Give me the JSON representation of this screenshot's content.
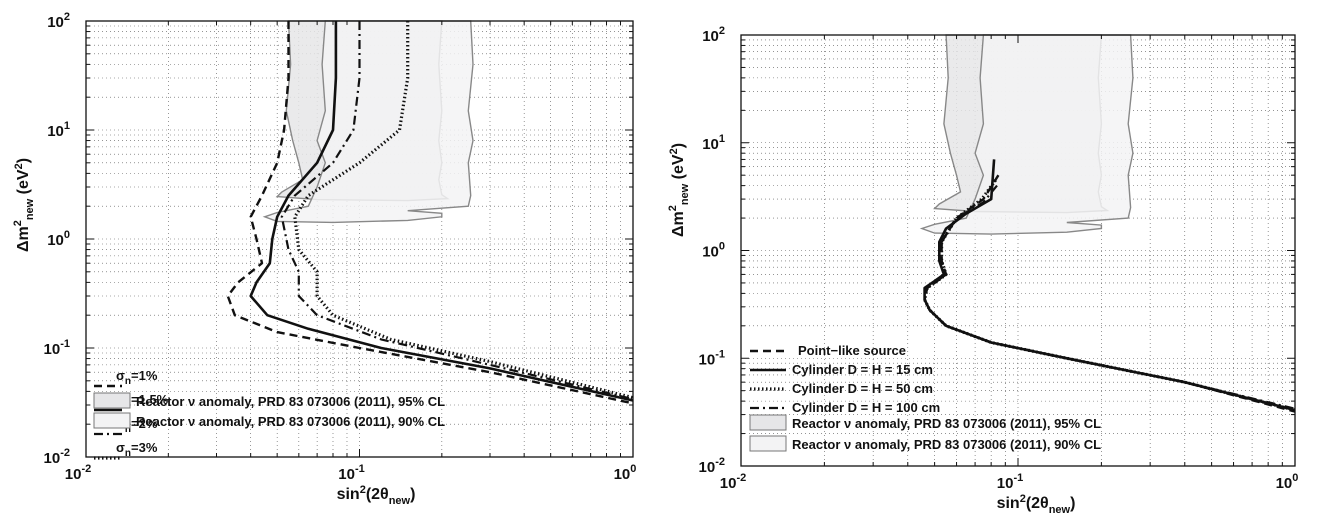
{
  "chart_data": [
    {
      "type": "line",
      "x_scale": "log",
      "y_scale": "log",
      "xlim": [
        0.01,
        1
      ],
      "ylim": [
        0.01,
        100
      ],
      "x_tick_labels": [
        "10-2",
        "10-1",
        "100"
      ],
      "y_tick_labels": [
        "10-2",
        "10-1",
        "100",
        "101",
        "102"
      ],
      "xlabel": "sin2(2θnew)",
      "ylabel": "Δm2new (eV2)",
      "grid": true,
      "legend_position": "lower-left",
      "series": [
        {
          "name": "σn=1%",
          "style": "dashed",
          "points": [
            [
              0.055,
              100
            ],
            [
              0.055,
              30
            ],
            [
              0.053,
              10
            ],
            [
              0.05,
              5
            ],
            [
              0.044,
              2.5
            ],
            [
              0.04,
              1.6
            ],
            [
              0.042,
              1.0
            ],
            [
              0.044,
              0.6
            ],
            [
              0.036,
              0.4
            ],
            [
              0.033,
              0.3
            ],
            [
              0.035,
              0.2
            ],
            [
              0.05,
              0.14
            ],
            [
              0.1,
              0.1
            ],
            [
              0.3,
              0.06
            ],
            [
              1,
              0.031
            ]
          ]
        },
        {
          "name": "σn=1.5%",
          "style": "solid",
          "points": [
            [
              0.082,
              100
            ],
            [
              0.082,
              30
            ],
            [
              0.08,
              10
            ],
            [
              0.07,
              5
            ],
            [
              0.055,
              2.5
            ],
            [
              0.05,
              1.6
            ],
            [
              0.048,
              1.0
            ],
            [
              0.047,
              0.6
            ],
            [
              0.042,
              0.4
            ],
            [
              0.04,
              0.3
            ],
            [
              0.046,
              0.2
            ],
            [
              0.065,
              0.15
            ],
            [
              0.12,
              0.1
            ],
            [
              0.3,
              0.065
            ],
            [
              1,
              0.033
            ]
          ]
        },
        {
          "name": "σn=2%",
          "style": "dashdot",
          "points": [
            [
              0.1,
              100
            ],
            [
              0.1,
              30
            ],
            [
              0.095,
              10
            ],
            [
              0.08,
              5
            ],
            [
              0.058,
              2.5
            ],
            [
              0.052,
              1.6
            ],
            [
              0.055,
              0.8
            ],
            [
              0.06,
              0.5
            ],
            [
              0.06,
              0.3
            ],
            [
              0.07,
              0.2
            ],
            [
              0.12,
              0.12
            ],
            [
              0.3,
              0.07
            ],
            [
              1,
              0.034
            ]
          ]
        },
        {
          "name": "σn=3%",
          "style": "dotted",
          "points": [
            [
              0.15,
              100
            ],
            [
              0.15,
              30
            ],
            [
              0.14,
              10
            ],
            [
              0.1,
              5
            ],
            [
              0.065,
              2.5
            ],
            [
              0.058,
              1.6
            ],
            [
              0.06,
              0.8
            ],
            [
              0.07,
              0.5
            ],
            [
              0.07,
              0.3
            ],
            [
              0.08,
              0.2
            ],
            [
              0.13,
              0.12
            ],
            [
              0.3,
              0.075
            ],
            [
              1,
              0.035
            ]
          ]
        }
      ],
      "regions": [
        {
          "name": "Reactor ν anomaly, PRD 83 073006 (2011), 95% CL",
          "fill": "#e6e6e8"
        },
        {
          "name": "Reactor ν anomaly, PRD 83 073006 (2011), 90% CL",
          "fill": "#f3f3f4"
        }
      ]
    },
    {
      "type": "line",
      "x_scale": "log",
      "y_scale": "log",
      "xlim": [
        0.01,
        1
      ],
      "ylim": [
        0.01,
        100
      ],
      "x_tick_labels": [
        "10-2",
        "10-1",
        "100"
      ],
      "y_tick_labels": [
        "10-2",
        "10-1",
        "100",
        "101",
        "102"
      ],
      "xlabel": "sin2(2θnew)",
      "ylabel": "Δm2new (eV2)",
      "grid": true,
      "legend_position": "lower-left",
      "series": [
        {
          "name": "Point−like source",
          "style": "dashed",
          "points": [
            [
              0.085,
              5
            ],
            [
              0.075,
              3
            ],
            [
              0.06,
              2
            ],
            [
              0.053,
              1.2
            ],
            [
              0.053,
              0.8
            ],
            [
              0.055,
              0.6
            ],
            [
              0.05,
              0.5
            ],
            [
              0.047,
              0.45
            ],
            [
              0.046,
              0.35
            ],
            [
              0.048,
              0.28
            ],
            [
              0.055,
              0.2
            ],
            [
              0.08,
              0.14
            ],
            [
              0.15,
              0.1
            ],
            [
              0.4,
              0.06
            ],
            [
              1,
              0.032
            ]
          ]
        },
        {
          "name": "Cylinder D = H = 15 cm",
          "style": "solid",
          "points": [
            [
              0.082,
              7
            ],
            [
              0.08,
              3
            ],
            [
              0.065,
              2.2
            ],
            [
              0.055,
              1.6
            ],
            [
              0.052,
              1.2
            ],
            [
              0.052,
              0.8
            ],
            [
              0.054,
              0.6
            ],
            [
              0.05,
              0.52
            ],
            [
              0.046,
              0.45
            ],
            [
              0.046,
              0.35
            ],
            [
              0.048,
              0.28
            ],
            [
              0.055,
              0.2
            ],
            [
              0.08,
              0.14
            ],
            [
              0.15,
              0.1
            ],
            [
              0.4,
              0.06
            ],
            [
              1,
              0.033
            ]
          ]
        },
        {
          "name": "Cylinder D = H = 50 cm",
          "style": "dotted",
          "points": [
            [
              0.083,
              4.5
            ],
            [
              0.074,
              3
            ],
            [
              0.06,
              2
            ],
            [
              0.053,
              1.2
            ],
            [
              0.053,
              0.8
            ],
            [
              0.055,
              0.6
            ],
            [
              0.05,
              0.5
            ],
            [
              0.047,
              0.45
            ],
            [
              0.046,
              0.35
            ],
            [
              0.048,
              0.28
            ],
            [
              0.055,
              0.2
            ],
            [
              0.08,
              0.14
            ],
            [
              0.15,
              0.1
            ],
            [
              0.4,
              0.06
            ],
            [
              1,
              0.033
            ]
          ]
        },
        {
          "name": "Cylinder D = H = 100 cm",
          "style": "dashdot",
          "points": [
            [
              0.084,
              4
            ],
            [
              0.075,
              2.8
            ],
            [
              0.06,
              2
            ],
            [
              0.053,
              1.2
            ],
            [
              0.053,
              0.8
            ],
            [
              0.055,
              0.6
            ],
            [
              0.05,
              0.5
            ],
            [
              0.047,
              0.45
            ],
            [
              0.046,
              0.35
            ],
            [
              0.048,
              0.28
            ],
            [
              0.055,
              0.2
            ],
            [
              0.08,
              0.14
            ],
            [
              0.15,
              0.1
            ],
            [
              0.4,
              0.06
            ],
            [
              1,
              0.034
            ]
          ]
        }
      ],
      "regions": [
        {
          "name": "Reactor ν anomaly, PRD 83 073006 (2011), 95% CL",
          "fill": "#e6e6e8"
        },
        {
          "name": "Reactor ν anomaly, PRD 83 073006 (2011), 90% CL",
          "fill": "#f3f3f4"
        }
      ]
    }
  ]
}
